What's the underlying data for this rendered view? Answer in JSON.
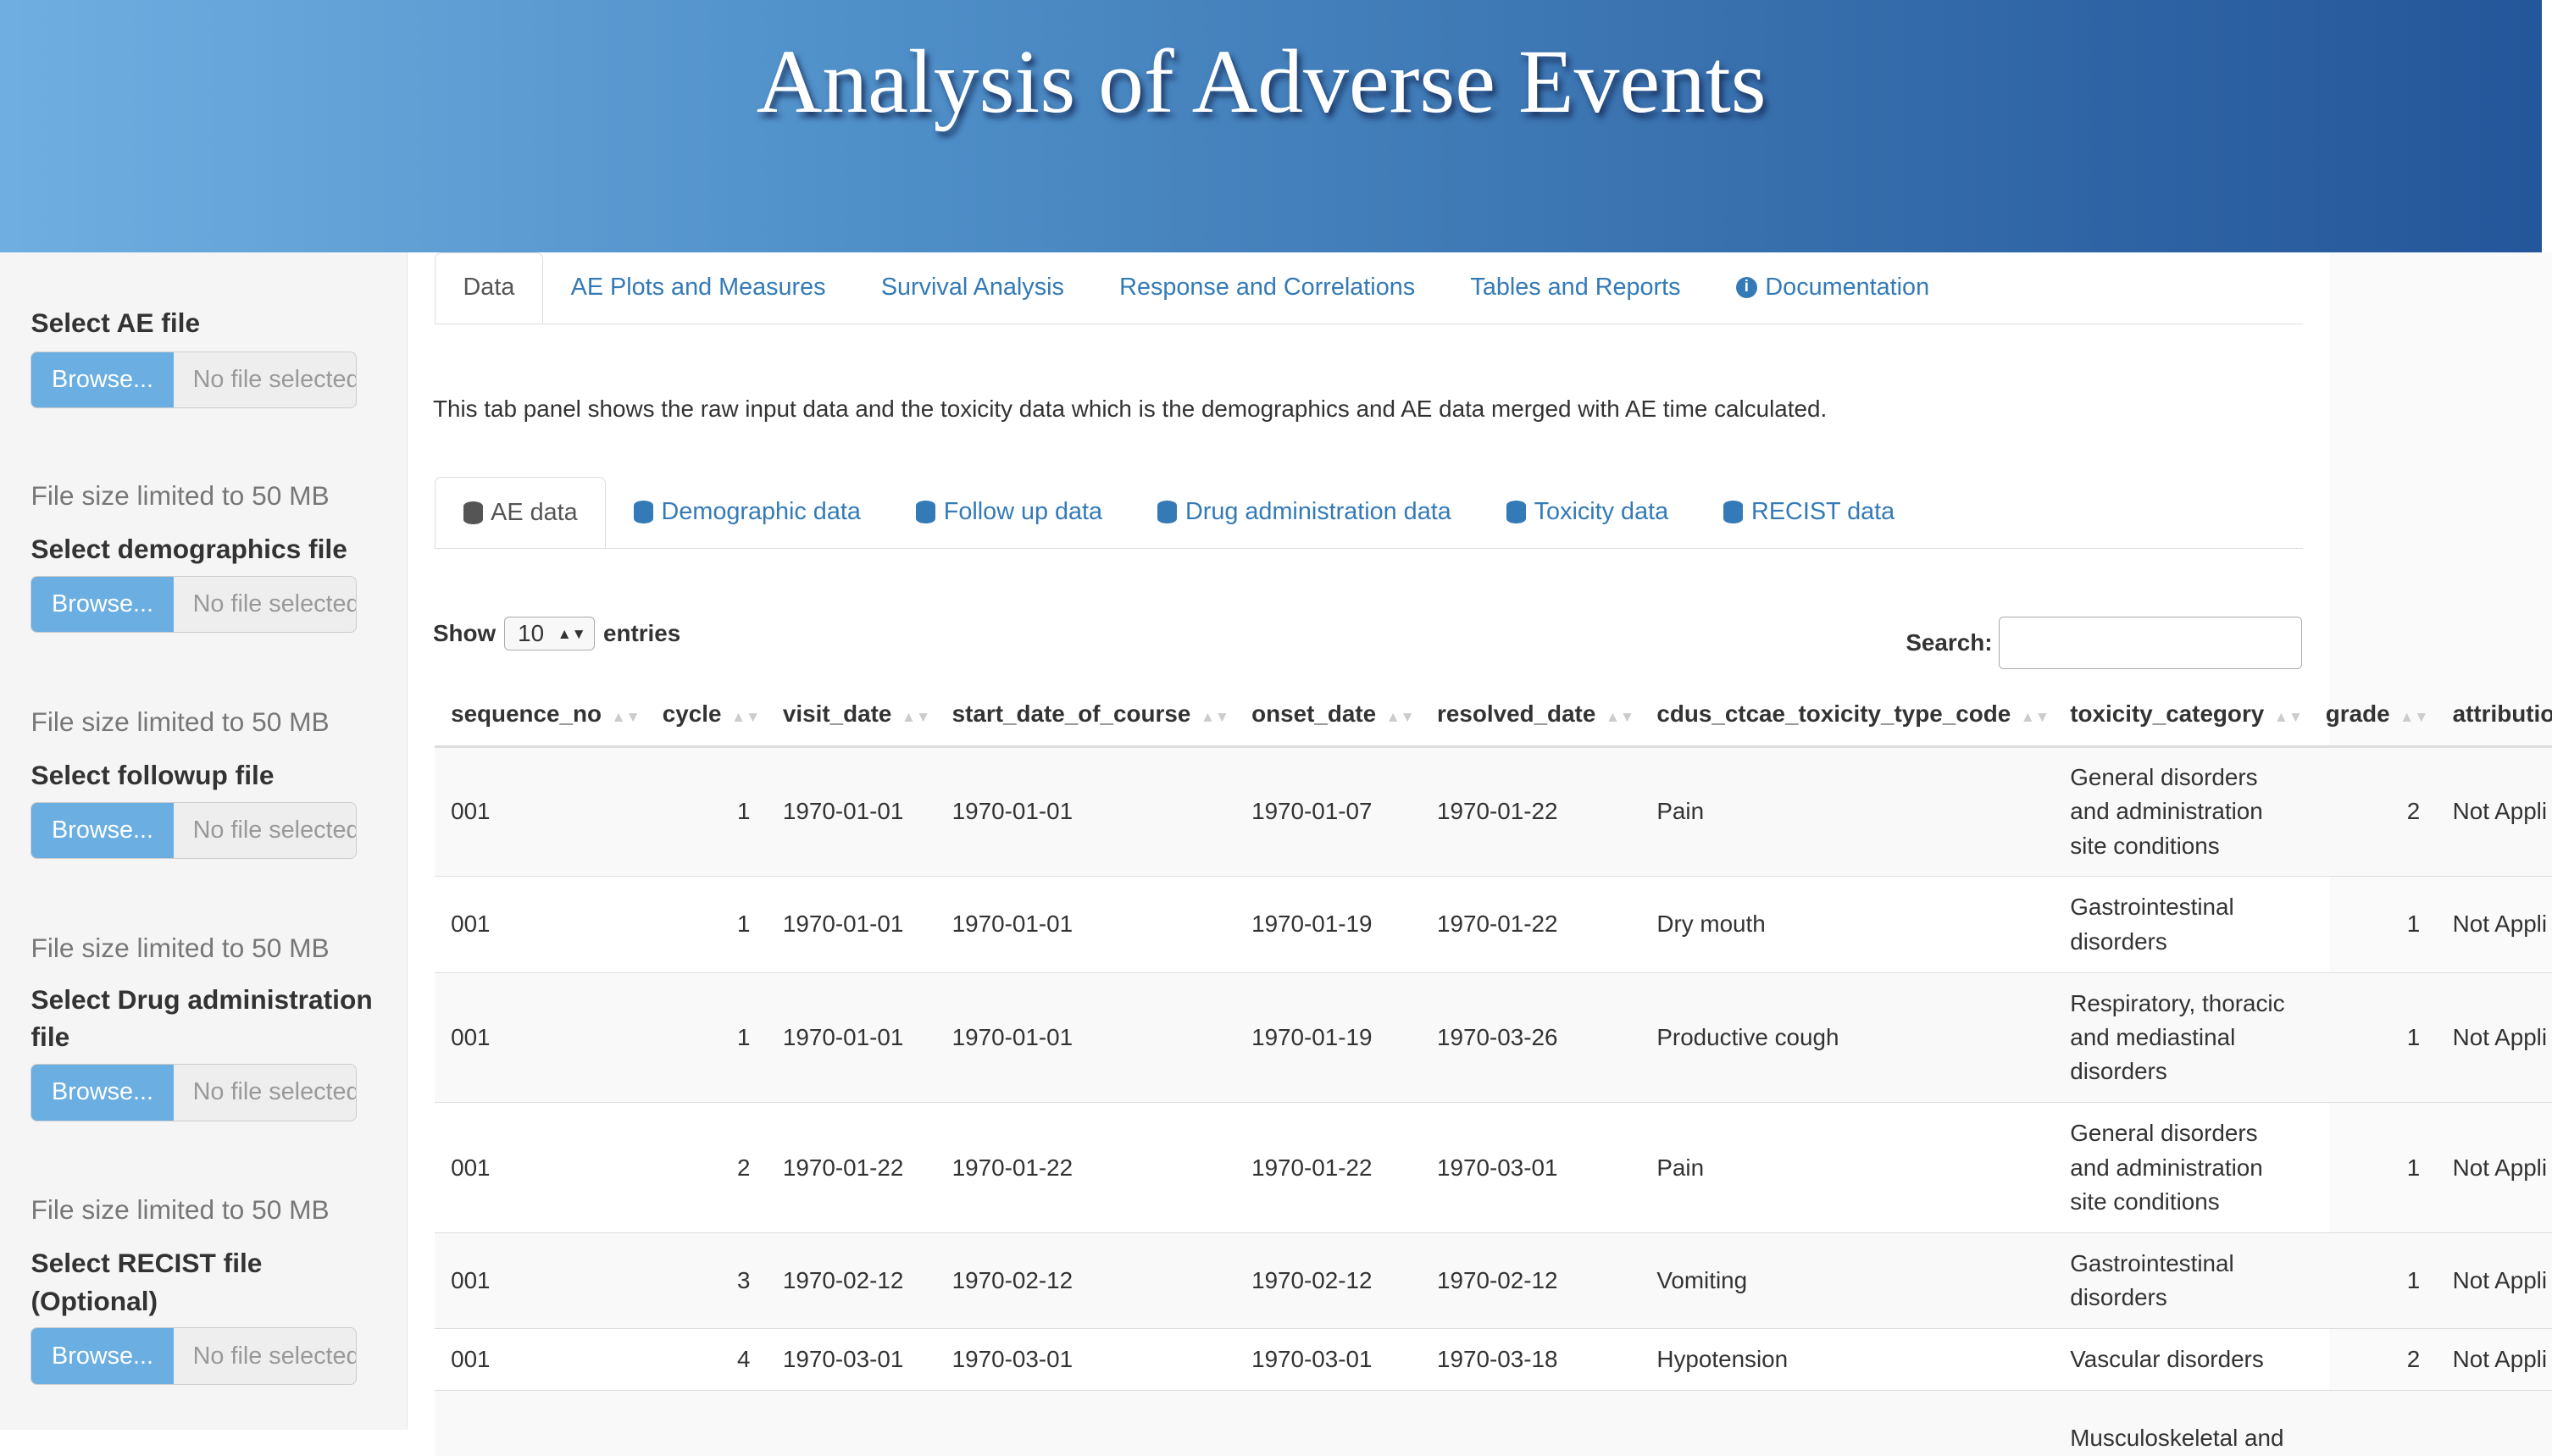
{
  "header": {
    "title": "Analysis of Adverse Events"
  },
  "sidebar": {
    "browse_label": "Browse...",
    "no_file": "No file selected",
    "size_note": "File size limited to 50 MB",
    "inputs": [
      "Select AE file",
      "Select demographics file",
      "Select followup file",
      "Select Drug administration file",
      "Select RECIST file (Optional)"
    ]
  },
  "tabs": [
    "Data",
    "AE Plots and Measures",
    "Survival Analysis",
    "Response and Correlations",
    "Tables and Reports",
    "Documentation"
  ],
  "description": "This tab panel shows the raw input data and the toxicity data which is the demographics and AE data merged with AE time calculated.",
  "subtabs": [
    "AE data",
    "Demographic data",
    "Follow up data",
    "Drug administration data",
    "Toxicity data",
    "RECIST data"
  ],
  "table_controls": {
    "show": "Show",
    "entries": "entries",
    "length": "10",
    "search": "Search:"
  },
  "table": {
    "columns": [
      "sequence_no",
      "cycle",
      "visit_date",
      "start_date_of_course",
      "onset_date",
      "resolved_date",
      "cdus_ctcae_toxicity_type_code",
      "toxicity_category",
      "grade",
      "attributio"
    ],
    "rows": [
      [
        "001",
        "1",
        "1970-01-01",
        "1970-01-01",
        "1970-01-07",
        "1970-01-22",
        "Pain",
        "General disorders and administration site conditions",
        "2",
        "Not Appli"
      ],
      [
        "001",
        "1",
        "1970-01-01",
        "1970-01-01",
        "1970-01-19",
        "1970-01-22",
        "Dry mouth",
        "Gastrointestinal disorders",
        "1",
        "Not Appli"
      ],
      [
        "001",
        "1",
        "1970-01-01",
        "1970-01-01",
        "1970-01-19",
        "1970-03-26",
        "Productive cough",
        "Respiratory, thoracic and mediastinal disorders",
        "1",
        "Not Appli"
      ],
      [
        "001",
        "2",
        "1970-01-22",
        "1970-01-22",
        "1970-01-22",
        "1970-03-01",
        "Pain",
        "General disorders and administration site conditions",
        "1",
        "Not Appli"
      ],
      [
        "001",
        "3",
        "1970-02-12",
        "1970-02-12",
        "1970-02-12",
        "1970-02-12",
        "Vomiting",
        "Gastrointestinal disorders",
        "1",
        "Not Appli"
      ],
      [
        "001",
        "4",
        "1970-03-01",
        "1970-03-01",
        "1970-03-01",
        "1970-03-18",
        "Hypotension",
        "Vascular disorders",
        "2",
        "Not Appli"
      ],
      [
        "",
        "",
        "",
        "",
        "",
        "",
        "",
        "Musculoskeletal and",
        "",
        ""
      ]
    ]
  },
  "colors": {
    "link": "#337ab7",
    "browse": "#6aaee2",
    "header_dark": "#23569a",
    "header_light": "#6eaee0"
  }
}
